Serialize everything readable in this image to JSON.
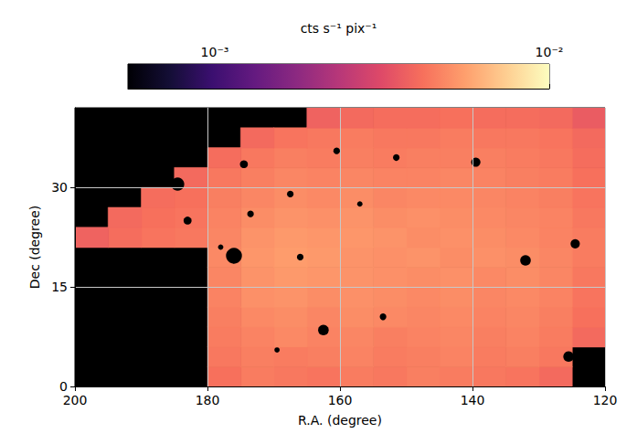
{
  "chart_data": {
    "type": "heatmap",
    "xlabel": "R.A. (degree)",
    "ylabel": "Dec (degree)",
    "xlim": [
      200,
      120
    ],
    "xticks": [
      120,
      140,
      160,
      180,
      200
    ],
    "ylim": [
      0,
      42
    ],
    "yticks": [
      0,
      15,
      30
    ],
    "grid": true,
    "log": true,
    "ra_edges": [
      120,
      125,
      130,
      135,
      140,
      145,
      150,
      155,
      160,
      165,
      170,
      175,
      180,
      185,
      190,
      195,
      200
    ],
    "dec_edges": [
      0,
      3,
      6,
      9,
      12,
      15,
      18,
      21,
      24,
      27,
      30,
      33,
      36,
      39,
      42
    ],
    "cells": [
      [
        null,
        0.004,
        0.0043,
        0.0044,
        0.0045,
        0.0046,
        0.0044,
        0.0045,
        0.0043,
        0.0044,
        0.0045,
        0.0042,
        null,
        null,
        null,
        null
      ],
      [
        null,
        0.0044,
        0.0046,
        0.0045,
        0.0047,
        0.0046,
        0.0045,
        0.0047,
        0.0046,
        0.0045,
        0.0046,
        0.0044,
        null,
        null,
        null,
        null
      ],
      [
        0.004,
        0.0045,
        0.0047,
        0.0046,
        0.0048,
        0.0047,
        0.0046,
        0.0048,
        0.0047,
        0.0049,
        0.0047,
        0.0045,
        null,
        null,
        null,
        null
      ],
      [
        0.0042,
        0.0046,
        0.0048,
        0.0047,
        0.0049,
        0.0048,
        0.0049,
        0.005,
        0.0048,
        0.005,
        0.0049,
        0.0046,
        null,
        null,
        null,
        null
      ],
      [
        0.0043,
        0.0047,
        0.0049,
        0.0048,
        0.005,
        0.0049,
        0.005,
        0.0051,
        0.005,
        0.0052,
        0.0051,
        0.0047,
        null,
        null,
        null,
        null
      ],
      [
        0.0044,
        0.0048,
        0.005,
        0.0049,
        0.0051,
        0.005,
        0.0051,
        0.0052,
        0.0053,
        0.0054,
        0.0052,
        0.0048,
        null,
        null,
        null,
        null
      ],
      [
        0.0045,
        0.0048,
        0.005,
        0.0051,
        0.005,
        0.0052,
        0.0051,
        0.0052,
        0.0054,
        0.0055,
        0.0053,
        0.0049,
        null,
        null,
        null,
        null
      ],
      [
        0.0045,
        0.0047,
        0.0049,
        0.005,
        0.0051,
        0.005,
        0.0052,
        0.0053,
        0.0053,
        0.0054,
        0.0052,
        0.0048,
        0.0044,
        0.0043,
        0.0041,
        0.0038
      ],
      [
        0.0044,
        0.0047,
        0.0048,
        0.0049,
        0.005,
        0.0051,
        0.005,
        0.0052,
        0.0051,
        0.0052,
        0.005,
        0.0047,
        0.0043,
        0.0042,
        0.004,
        null
      ],
      [
        0.0043,
        0.0046,
        0.0047,
        0.0048,
        0.0049,
        0.0049,
        0.0048,
        0.005,
        0.0049,
        0.005,
        0.0048,
        0.0046,
        0.0042,
        0.0041,
        null,
        null
      ],
      [
        0.0042,
        0.0045,
        0.0046,
        0.0047,
        0.0048,
        0.0047,
        0.0047,
        0.0048,
        0.0047,
        0.0048,
        0.0046,
        0.0044,
        0.004,
        null,
        null,
        null
      ],
      [
        0.0041,
        0.0044,
        0.0045,
        0.0046,
        0.0046,
        0.0046,
        0.0045,
        0.0046,
        0.0045,
        0.0046,
        0.0044,
        0.0041,
        null,
        null,
        null,
        null
      ],
      [
        0.004,
        0.0043,
        0.0044,
        0.0044,
        0.0045,
        0.0044,
        0.0044,
        0.0045,
        0.0044,
        0.0043,
        0.004,
        null,
        null,
        null,
        null,
        null
      ],
      [
        0.0036,
        0.004,
        0.0041,
        0.0041,
        0.0042,
        0.0041,
        0.0041,
        0.004,
        0.0038,
        null,
        null,
        null,
        null,
        null,
        null,
        null
      ]
    ],
    "masked_sources": [
      {
        "ra": 176,
        "dec": 19.7,
        "radius": 1.2
      },
      {
        "ra": 162.5,
        "dec": 8.5,
        "radius": 0.8
      },
      {
        "ra": 132,
        "dec": 19,
        "radius": 0.8
      },
      {
        "ra": 125.5,
        "dec": 4.5,
        "radius": 0.8
      },
      {
        "ra": 124.5,
        "dec": 21.5,
        "radius": 0.7
      },
      {
        "ra": 139.5,
        "dec": 33.8,
        "radius": 0.7
      },
      {
        "ra": 151.5,
        "dec": 34.5,
        "radius": 0.5
      },
      {
        "ra": 174.5,
        "dec": 33.5,
        "radius": 0.6
      },
      {
        "ra": 184.5,
        "dec": 30.5,
        "radius": 1.0
      },
      {
        "ra": 183,
        "dec": 25,
        "radius": 0.6
      },
      {
        "ra": 178,
        "dec": 21,
        "radius": 0.4
      },
      {
        "ra": 173.5,
        "dec": 26,
        "radius": 0.5
      },
      {
        "ra": 167.5,
        "dec": 29,
        "radius": 0.5
      },
      {
        "ra": 166,
        "dec": 19.5,
        "radius": 0.5
      },
      {
        "ra": 153.5,
        "dec": 10.5,
        "radius": 0.5
      },
      {
        "ra": 169.5,
        "dec": 5.5,
        "radius": 0.4
      },
      {
        "ra": 157,
        "dec": 27.5,
        "radius": 0.4
      },
      {
        "ra": 160.5,
        "dec": 35.5,
        "radius": 0.5
      }
    ],
    "colorbar": {
      "label": "cts s⁻¹ pix⁻¹",
      "range": [
        0.00055,
        0.01
      ],
      "ticks": [
        {
          "value": 0.001,
          "label": "10⁻³"
        },
        {
          "value": 0.01,
          "label": "10⁻²"
        }
      ]
    }
  }
}
